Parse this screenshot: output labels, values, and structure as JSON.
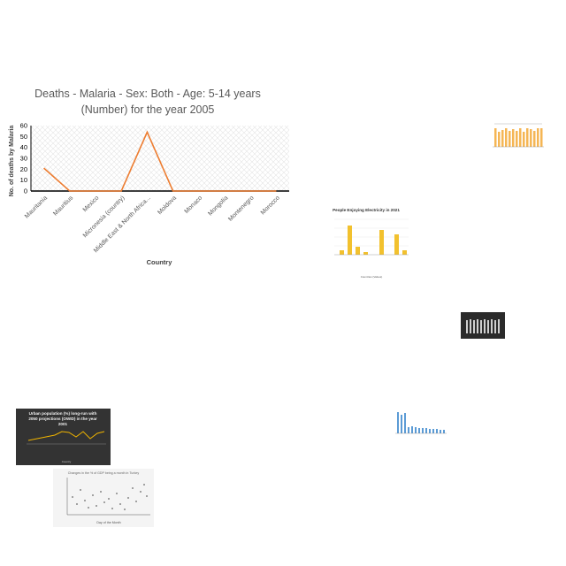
{
  "chart_data": {
    "type": "line",
    "title_line1": "Deaths - Malaria - Sex: Both - Age: 5-14 years",
    "title_line2": "(Number) for the year 2005",
    "xlabel": "Country",
    "ylabel": "No. of deaths by Malaria",
    "categories": [
      "Mauritania",
      "Mauritius",
      "Mexico",
      "Micronesia (country)",
      "Middle East & North Africa...",
      "Moldova",
      "Monaco",
      "Mongolia",
      "Montenegro",
      "Morocco"
    ],
    "values": [
      21,
      0,
      0,
      0,
      54,
      0,
      0,
      0,
      0,
      0
    ],
    "yticks": [
      "0",
      "10",
      "20",
      "30",
      "40",
      "50",
      "60"
    ],
    "ylim": [
      0,
      60
    ],
    "grid": true,
    "line_color": "#ed7d31"
  },
  "thumbnails": {
    "electricity_title": "People Enjoying Electricity in 2021",
    "electricity_xlabel": "Countries (Values)",
    "urban_title": "Urban population (%) long-run with 2050 projections (OWID) in the year 2001",
    "urban_xlabel": "Country",
    "scatter_title": "Changes in the % of GDP being a month in Turkey",
    "scatter_xlabel": "Day of the Month"
  }
}
